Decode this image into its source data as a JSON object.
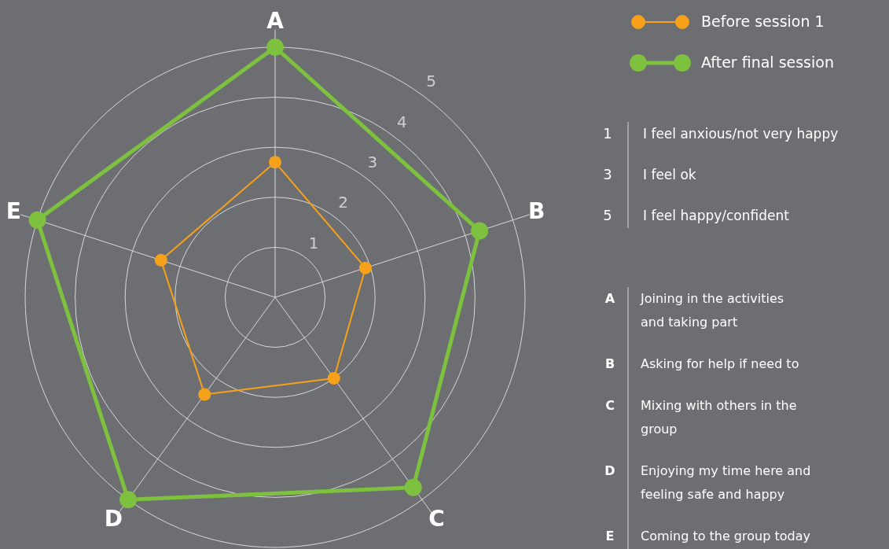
{
  "chart_data": {
    "type": "radar",
    "categories": [
      "A",
      "B",
      "C",
      "D",
      "E"
    ],
    "series": [
      {
        "name": "Before session 1",
        "color": "#f7a11a",
        "values": [
          2.7,
          1.9,
          2.0,
          2.4,
          2.4
        ]
      },
      {
        "name": "After final session",
        "color": "#7dc13f",
        "values": [
          5.0,
          4.3,
          4.7,
          5.0,
          5.0
        ]
      }
    ],
    "ylim": [
      0,
      5
    ],
    "yticks": [
      1,
      2,
      3,
      4,
      5
    ],
    "grid": true,
    "legend": "top right",
    "marker": "circle",
    "line_style": "solid",
    "annotations": [
      "1",
      "I feel anxious/not very happy",
      "3",
      "I feel ok",
      "5",
      "I feel happy/confident",
      "A",
      "Joining in the activities and taking part",
      "B",
      "Asking for help if need to",
      "C",
      "Mixing with others in the group",
      "D",
      "Enjoying my time here and feeling safe and happy",
      "E",
      "Coming to the group today"
    ]
  }
}
